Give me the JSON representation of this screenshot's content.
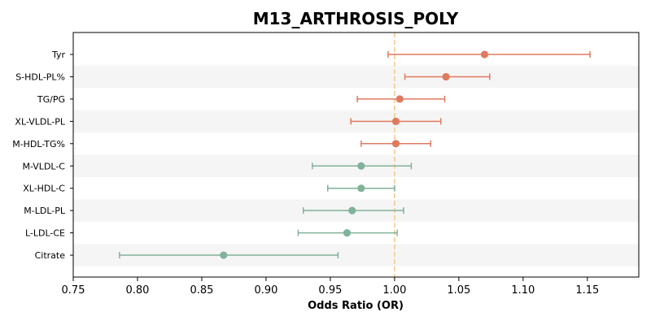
{
  "chart_data": {
    "type": "forest",
    "title": "M13_ARTHROSIS_POLY",
    "xlabel": "Odds Ratio (OR)",
    "xlim": [
      0.75,
      1.19
    ],
    "x_ticks": [
      "0.75",
      "0.80",
      "0.85",
      "0.90",
      "0.95",
      "1.00",
      "1.05",
      "1.10",
      "1.15"
    ],
    "reference_line": 1.0,
    "colors": {
      "positive": "#E07A5F",
      "negative": "#81B29A",
      "reference": "#F2CC8F",
      "band": "#F5F5F5"
    },
    "rows": [
      {
        "label": "Tyr",
        "or": 1.07,
        "lo": 0.995,
        "hi": 1.152,
        "direction": "positive"
      },
      {
        "label": "S-HDL-PL%",
        "or": 1.04,
        "lo": 1.008,
        "hi": 1.074,
        "direction": "positive"
      },
      {
        "label": "TG/PG",
        "or": 1.004,
        "lo": 0.971,
        "hi": 1.039,
        "direction": "positive"
      },
      {
        "label": "XL-VLDL-PL",
        "or": 1.001,
        "lo": 0.966,
        "hi": 1.036,
        "direction": "positive"
      },
      {
        "label": "M-HDL-TG%",
        "or": 1.001,
        "lo": 0.974,
        "hi": 1.028,
        "direction": "positive"
      },
      {
        "label": "M-VLDL-C",
        "or": 0.974,
        "lo": 0.936,
        "hi": 1.013,
        "direction": "negative"
      },
      {
        "label": "XL-HDL-C",
        "or": 0.974,
        "lo": 0.948,
        "hi": 1.0,
        "direction": "negative"
      },
      {
        "label": "M-LDL-PL",
        "or": 0.967,
        "lo": 0.929,
        "hi": 1.007,
        "direction": "negative"
      },
      {
        "label": "L-LDL-CE",
        "or": 0.963,
        "lo": 0.925,
        "hi": 1.002,
        "direction": "negative"
      },
      {
        "label": "Citrate",
        "or": 0.867,
        "lo": 0.786,
        "hi": 0.956,
        "direction": "negative"
      }
    ]
  }
}
